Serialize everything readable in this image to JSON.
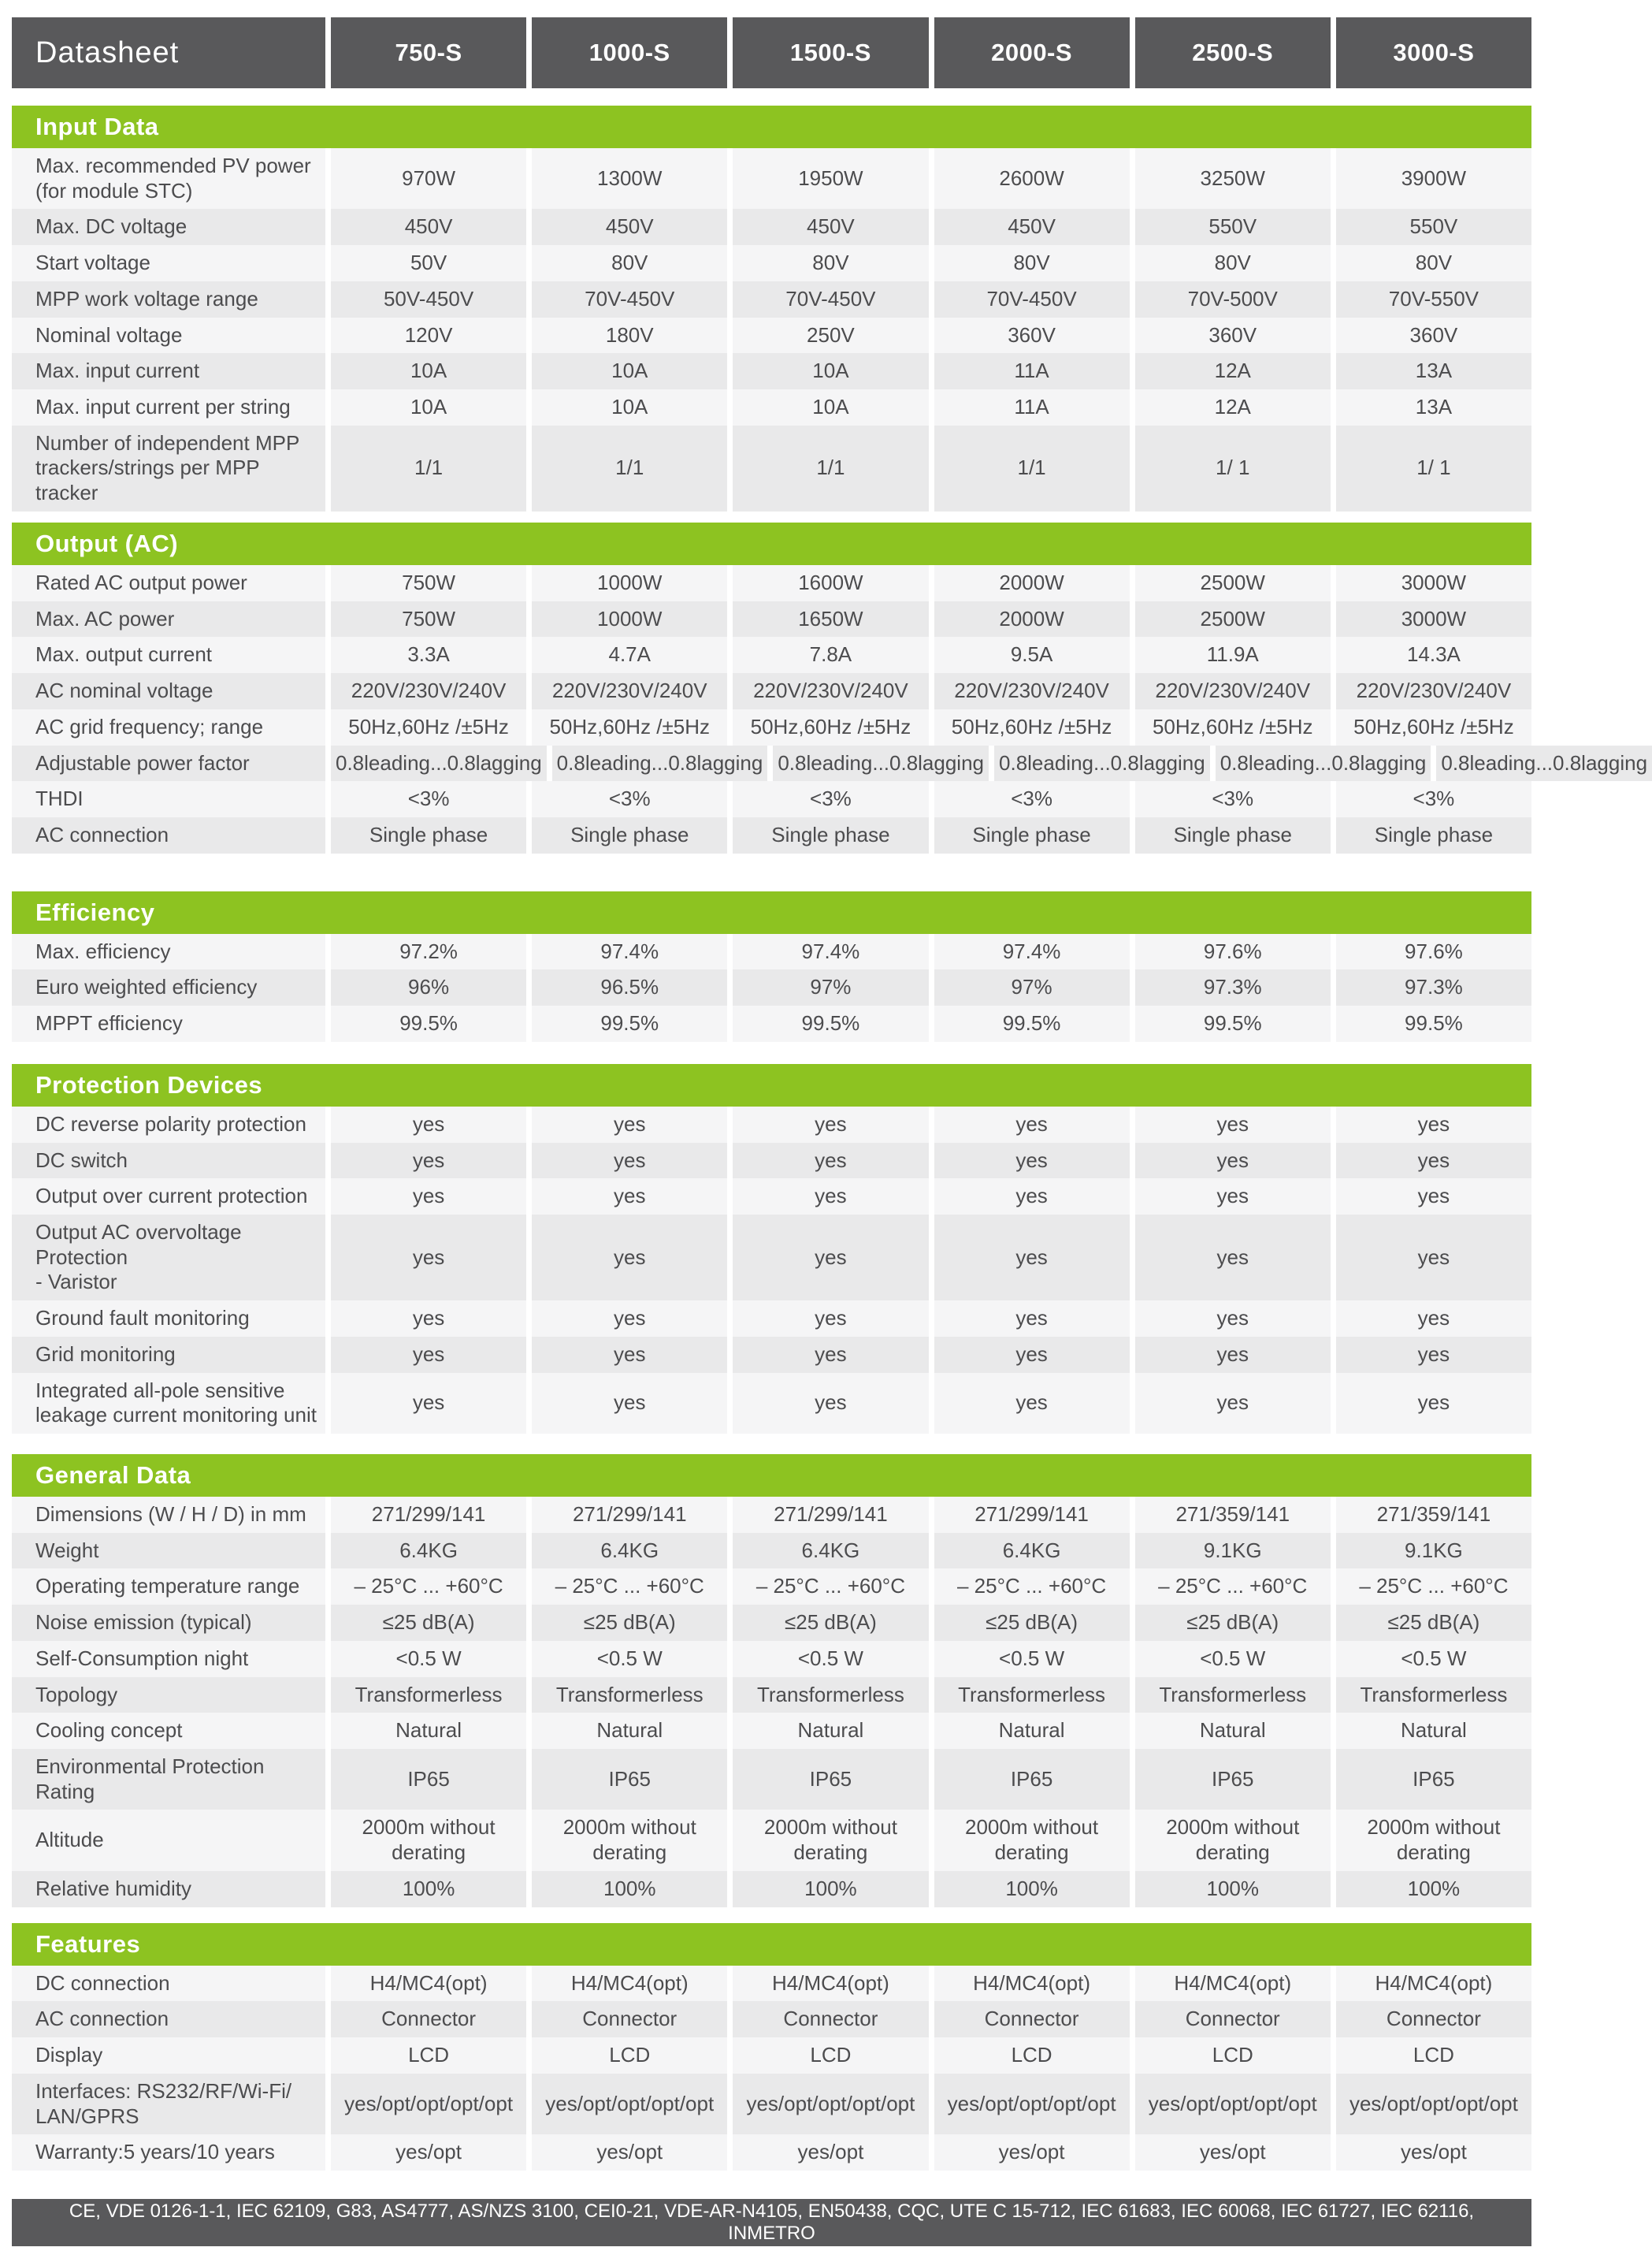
{
  "header": {
    "title": "Datasheet",
    "models": [
      "750-S",
      "1000-S",
      "1500-S",
      "2000-S",
      "2500-S",
      "3000-S"
    ]
  },
  "sections": [
    {
      "title": "Input Data",
      "rows": [
        {
          "label": "Max. recommended PV power\n(for module STC)",
          "values": [
            "970W",
            "1300W",
            "1950W",
            "2600W",
            "3250W",
            "3900W"
          ]
        },
        {
          "label": "Max. DC voltage",
          "values": [
            "450V",
            "450V",
            "450V",
            "450V",
            "550V",
            "550V"
          ]
        },
        {
          "label": "Start voltage",
          "values": [
            "50V",
            "80V",
            "80V",
            "80V",
            "80V",
            "80V"
          ]
        },
        {
          "label": "MPP work voltage range",
          "values": [
            "50V-450V",
            "70V-450V",
            "70V-450V",
            "70V-450V",
            "70V-500V",
            "70V-550V"
          ]
        },
        {
          "label": "Nominal voltage",
          "values": [
            "120V",
            "180V",
            "250V",
            "360V",
            "360V",
            "360V"
          ]
        },
        {
          "label": "Max. input current",
          "values": [
            "10A",
            "10A",
            "10A",
            "11A",
            "12A",
            "13A"
          ]
        },
        {
          "label": "Max. input current per string",
          "values": [
            "10A",
            "10A",
            "10A",
            "11A",
            "12A",
            "13A"
          ]
        },
        {
          "label": "Number of independent MPP\ntrackers/strings per MPP tracker",
          "values": [
            "1/1",
            "1/1",
            "1/1",
            "1/1",
            "1/ 1",
            "1/ 1"
          ]
        }
      ]
    },
    {
      "title": "Output (AC)",
      "rows": [
        {
          "label": "Rated AC output power",
          "values": [
            "750W",
            "1000W",
            "1600W",
            "2000W",
            "2500W",
            "3000W"
          ]
        },
        {
          "label": "Max. AC power",
          "values": [
            "750W",
            "1000W",
            "1650W",
            "2000W",
            "2500W",
            "3000W"
          ]
        },
        {
          "label": "Max. output current",
          "values": [
            "3.3A",
            "4.7A",
            "7.8A",
            "9.5A",
            "11.9A",
            "14.3A"
          ]
        },
        {
          "label": "AC nominal voltage",
          "values": [
            "220V/230V/240V",
            "220V/230V/240V",
            "220V/230V/240V",
            "220V/230V/240V",
            "220V/230V/240V",
            "220V/230V/240V"
          ]
        },
        {
          "label": "AC grid frequency; range",
          "values": [
            "50Hz,60Hz /±5Hz",
            "50Hz,60Hz /±5Hz",
            "50Hz,60Hz /±5Hz",
            "50Hz,60Hz /±5Hz",
            "50Hz,60Hz /±5Hz",
            "50Hz,60Hz /±5Hz"
          ]
        },
        {
          "label": "Adjustable power factor",
          "values": [
            "0.8leading...0.8lagging",
            "0.8leading...0.8lagging",
            "0.8leading...0.8lagging",
            "0.8leading...0.8lagging",
            "0.8leading...0.8lagging",
            "0.8leading...0.8lagging"
          ]
        },
        {
          "label": "THDI",
          "values": [
            "<3%",
            "<3%",
            "<3%",
            "<3%",
            "<3%",
            "<3%"
          ]
        },
        {
          "label": "AC connection",
          "values": [
            "Single phase",
            "Single phase",
            "Single phase",
            "Single phase",
            "Single phase",
            "Single phase"
          ]
        }
      ]
    },
    {
      "title": "Efficiency",
      "rows": [
        {
          "label": "Max. efficiency",
          "values": [
            "97.2%",
            "97.4%",
            "97.4%",
            "97.4%",
            "97.6%",
            "97.6%"
          ]
        },
        {
          "label": "Euro weighted efficiency",
          "values": [
            "96%",
            "96.5%",
            "97%",
            "97%",
            "97.3%",
            "97.3%"
          ]
        },
        {
          "label": "MPPT efficiency",
          "values": [
            "99.5%",
            "99.5%",
            "99.5%",
            "99.5%",
            "99.5%",
            "99.5%"
          ]
        }
      ]
    },
    {
      "title": "Protection Devices",
      "rows": [
        {
          "label": "DC reverse polarity protection",
          "values": [
            "yes",
            "yes",
            "yes",
            "yes",
            "yes",
            "yes"
          ]
        },
        {
          "label": "DC switch",
          "values": [
            "yes",
            "yes",
            "yes",
            "yes",
            "yes",
            "yes"
          ]
        },
        {
          "label": "Output over current protection",
          "values": [
            "yes",
            "yes",
            "yes",
            "yes",
            "yes",
            "yes"
          ]
        },
        {
          "label": "Output AC overvoltage Protection\n - Varistor",
          "values": [
            "yes",
            "yes",
            "yes",
            "yes",
            "yes",
            "yes"
          ]
        },
        {
          "label": "Ground fault monitoring",
          "values": [
            "yes",
            "yes",
            "yes",
            "yes",
            "yes",
            "yes"
          ]
        },
        {
          "label": "Grid monitoring",
          "values": [
            "yes",
            "yes",
            "yes",
            "yes",
            "yes",
            "yes"
          ]
        },
        {
          "label": "Integrated all-pole sensitive\nleakage current monitoring unit",
          "values": [
            "yes",
            "yes",
            "yes",
            "yes",
            "yes",
            "yes"
          ]
        }
      ]
    },
    {
      "title": "General Data",
      "rows": [
        {
          "label": "Dimensions (W / H / D)  in mm",
          "values": [
            "271/299/141",
            "271/299/141",
            "271/299/141",
            "271/299/141",
            "271/359/141",
            "271/359/141"
          ]
        },
        {
          "label": "Weight",
          "values": [
            "6.4KG",
            "6.4KG",
            "6.4KG",
            "6.4KG",
            "9.1KG",
            "9.1KG"
          ]
        },
        {
          "label": "Operating temperature range",
          "values": [
            "– 25°C ... +60°C",
            "– 25°C ... +60°C",
            "– 25°C ... +60°C",
            "– 25°C ... +60°C",
            "– 25°C ... +60°C",
            "– 25°C ... +60°C"
          ]
        },
        {
          "label": "Noise emission (typical)",
          "values": [
            "≤25 dB(A)",
            "≤25 dB(A)",
            "≤25 dB(A)",
            "≤25 dB(A)",
            "≤25 dB(A)",
            "≤25 dB(A)"
          ]
        },
        {
          "label": "Self-Consumption night",
          "values": [
            "<0.5 W",
            "<0.5 W",
            "<0.5 W",
            "<0.5 W",
            "<0.5 W",
            "<0.5 W"
          ]
        },
        {
          "label": "Topology",
          "values": [
            "Transformerless",
            "Transformerless",
            "Transformerless",
            "Transformerless",
            "Transformerless",
            "Transformerless"
          ]
        },
        {
          "label": "Cooling concept",
          "values": [
            "Natural",
            "Natural",
            "Natural",
            "Natural",
            "Natural",
            "Natural"
          ]
        },
        {
          "label": "Environmental Protection Rating",
          "values": [
            "IP65",
            "IP65",
            "IP65",
            "IP65",
            "IP65",
            "IP65"
          ]
        },
        {
          "label": "Altitude",
          "values": [
            "2000m without derating",
            "2000m without derating",
            "2000m without derating",
            "2000m without derating",
            "2000m without derating",
            "2000m without derating"
          ]
        },
        {
          "label": "Relative humidity",
          "values": [
            "100%",
            "100%",
            "100%",
            "100%",
            "100%",
            "100%"
          ]
        }
      ]
    },
    {
      "title": "Features",
      "rows": [
        {
          "label": "DC connection",
          "values": [
            "H4/MC4(opt)",
            "H4/MC4(opt)",
            "H4/MC4(opt)",
            "H4/MC4(opt)",
            "H4/MC4(opt)",
            "H4/MC4(opt)"
          ]
        },
        {
          "label": "AC connection",
          "values": [
            "Connector",
            "Connector",
            "Connector",
            "Connector",
            "Connector",
            "Connector"
          ]
        },
        {
          "label": "Display",
          "values": [
            "LCD",
            "LCD",
            "LCD",
            "LCD",
            "LCD",
            "LCD"
          ]
        },
        {
          "label": "Interfaces: RS232/RF/Wi-Fi/\nLAN/GPRS",
          "values": [
            "yes/opt/opt/opt/opt",
            "yes/opt/opt/opt/opt",
            "yes/opt/opt/opt/opt",
            "yes/opt/opt/opt/opt",
            "yes/opt/opt/opt/opt",
            "yes/opt/opt/opt/opt"
          ]
        },
        {
          "label": "Warranty:5 years/10 years",
          "values": [
            "yes/opt",
            "yes/opt",
            "yes/opt",
            "yes/opt",
            "yes/opt",
            "yes/opt"
          ]
        }
      ]
    }
  ],
  "footer": {
    "certifications": "CE, VDE 0126-1-1, IEC 62109, G83, AS4777, AS/NZS 3100, CEI0-21, VDE-AR-N4105, EN50438, CQC, UTE C 15-712, IEC 61683, IEC 60068, IEC 61727, IEC 62116, INMETRO"
  },
  "colors": {
    "accent_green": "#8dc321",
    "header_gray": "#59595b",
    "row_light": "#f5f5f6",
    "row_dark": "#e9e9ea",
    "text_gray": "#4c4c4e"
  }
}
